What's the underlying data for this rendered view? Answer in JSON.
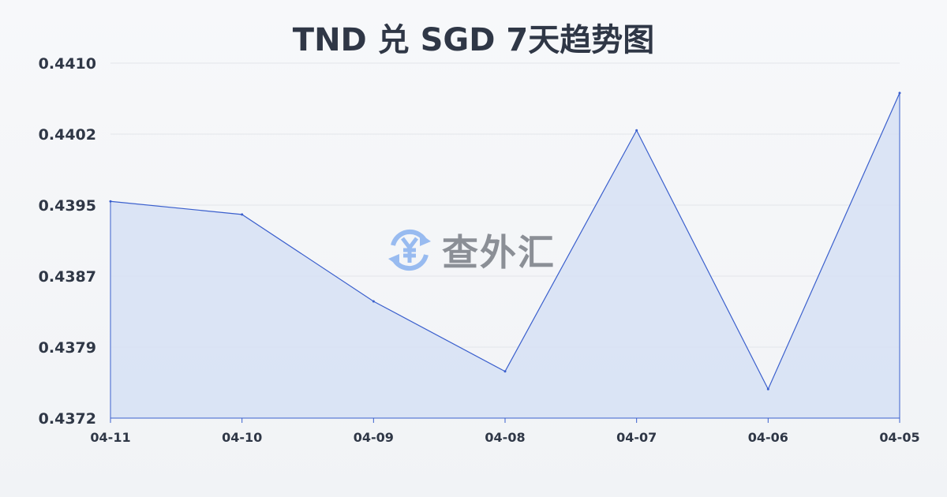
{
  "watermark": {
    "text": "查外汇",
    "icon": "yen-exchange-icon"
  },
  "chart_data": {
    "type": "area",
    "title": "TND 兑 SGD 7天趋势图",
    "xlabel": "",
    "ylabel": "",
    "categories": [
      "04-11",
      "04-10",
      "04-09",
      "04-08",
      "04-07",
      "04-06",
      "04-05"
    ],
    "values": [
      0.43952,
      0.43938,
      0.43845,
      0.4377,
      0.44028,
      0.43751,
      0.44068
    ],
    "ylim": [
      0.4372,
      0.441
    ],
    "yticks": [
      "0.4372",
      "0.4379",
      "0.4387",
      "0.4395",
      "0.4402",
      "0.4410"
    ],
    "grid": true,
    "line_color": "#3a5fcd",
    "fill_color": "#d6e0f5"
  }
}
